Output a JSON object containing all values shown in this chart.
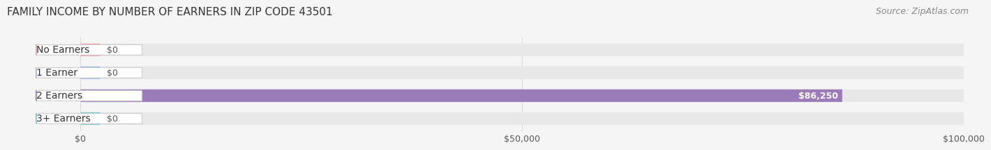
{
  "title": "FAMILY INCOME BY NUMBER OF EARNERS IN ZIP CODE 43501",
  "source": "Source: ZipAtlas.com",
  "categories": [
    "No Earners",
    "1 Earner",
    "2 Earners",
    "3+ Earners"
  ],
  "values": [
    0,
    0,
    86250,
    0
  ],
  "bar_colors": [
    "#f4a0a0",
    "#a0b8e8",
    "#9b7bb8",
    "#70ccd0"
  ],
  "value_labels": [
    "$0",
    "$0",
    "$86,250",
    "$0"
  ],
  "xlim": [
    0,
    100000
  ],
  "xticks": [
    0,
    50000,
    100000
  ],
  "xticklabels": [
    "$0",
    "$50,000",
    "$100,000"
  ],
  "background_color": "#f5f5f5",
  "bar_background_color": "#e8e8e8",
  "title_fontsize": 11,
  "source_fontsize": 9,
  "label_fontsize": 10,
  "value_fontsize": 9,
  "bar_height": 0.55
}
